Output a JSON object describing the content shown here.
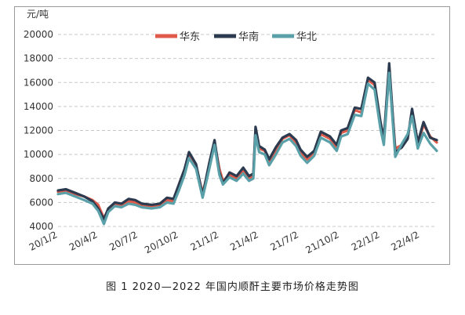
{
  "caption": "图 1  2020—2022 年国内顺酐主要市场价格走势图",
  "chart_data": {
    "type": "line",
    "title": "",
    "xlabel": "",
    "ylabel": "元/吨",
    "ylim": [
      4000,
      20000
    ],
    "yticks": [
      4000,
      6000,
      8000,
      10000,
      12000,
      14000,
      16000,
      18000,
      20000
    ],
    "xticks": [
      "20/1/2",
      "20/4/2",
      "20/7/2",
      "20/10/2",
      "21/1/2",
      "21/4/2",
      "21/7/2",
      "21/10/2",
      "22/1/2",
      "22/4/2"
    ],
    "x_range": [
      "2020-01-02",
      "2022-05-10"
    ],
    "grid": "horizontal dashed",
    "legend_position": "top-center",
    "series": [
      {
        "name": "华东",
        "color": "#e05a4a",
        "points": [
          [
            "2020-01-02",
            6900
          ],
          [
            "2020-01-20",
            7000
          ],
          [
            "2020-02-10",
            6700
          ],
          [
            "2020-03-01",
            6500
          ],
          [
            "2020-03-20",
            6200
          ],
          [
            "2020-04-02",
            5800
          ],
          [
            "2020-04-15",
            4700
          ],
          [
            "2020-04-25",
            5400
          ],
          [
            "2020-05-10",
            5900
          ],
          [
            "2020-05-25",
            5800
          ],
          [
            "2020-06-10",
            6100
          ],
          [
            "2020-06-25",
            6000
          ],
          [
            "2020-07-10",
            5800
          ],
          [
            "2020-08-01",
            5700
          ],
          [
            "2020-08-20",
            5800
          ],
          [
            "2020-09-05",
            6200
          ],
          [
            "2020-09-20",
            6100
          ],
          [
            "2020-10-02",
            7200
          ],
          [
            "2020-10-15",
            8500
          ],
          [
            "2020-10-25",
            10000
          ],
          [
            "2020-11-10",
            9000
          ],
          [
            "2020-11-25",
            6800
          ],
          [
            "2020-12-10",
            9000
          ],
          [
            "2020-12-22",
            11000
          ],
          [
            "2021-01-02",
            8800
          ],
          [
            "2021-01-10",
            7800
          ],
          [
            "2021-01-25",
            8300
          ],
          [
            "2021-02-10",
            8000
          ],
          [
            "2021-02-25",
            8600
          ],
          [
            "2021-03-10",
            8000
          ],
          [
            "2021-03-20",
            8200
          ],
          [
            "2021-03-25",
            12100
          ],
          [
            "2021-04-02",
            10500
          ],
          [
            "2021-04-15",
            10300
          ],
          [
            "2021-04-25",
            9400
          ],
          [
            "2021-05-10",
            10300
          ],
          [
            "2021-05-25",
            11300
          ],
          [
            "2021-06-10",
            11600
          ],
          [
            "2021-06-25",
            11000
          ],
          [
            "2021-07-05",
            10200
          ],
          [
            "2021-07-20",
            9600
          ],
          [
            "2021-08-05",
            10200
          ],
          [
            "2021-08-20",
            11700
          ],
          [
            "2021-09-10",
            11300
          ],
          [
            "2021-09-25",
            10500
          ],
          [
            "2021-10-05",
            11800
          ],
          [
            "2021-10-20",
            12000
          ],
          [
            "2021-11-05",
            13700
          ],
          [
            "2021-11-20",
            13500
          ],
          [
            "2021-12-05",
            16200
          ],
          [
            "2021-12-20",
            15800
          ],
          [
            "2022-01-02",
            12500
          ],
          [
            "2022-01-10",
            11000
          ],
          [
            "2022-01-22",
            17000
          ],
          [
            "2022-02-05",
            10500
          ],
          [
            "2022-02-20",
            10800
          ],
          [
            "2022-03-05",
            11500
          ],
          [
            "2022-03-15",
            13500
          ],
          [
            "2022-03-28",
            10800
          ],
          [
            "2022-04-10",
            12500
          ],
          [
            "2022-04-25",
            11500
          ],
          [
            "2022-05-10",
            11000
          ]
        ]
      },
      {
        "name": "华南",
        "color": "#2b3a4e",
        "points": [
          [
            "2020-01-02",
            7000
          ],
          [
            "2020-01-20",
            7100
          ],
          [
            "2020-02-10",
            6800
          ],
          [
            "2020-03-01",
            6500
          ],
          [
            "2020-03-20",
            6100
          ],
          [
            "2020-04-02",
            5500
          ],
          [
            "2020-04-15",
            4600
          ],
          [
            "2020-04-25",
            5500
          ],
          [
            "2020-05-10",
            6000
          ],
          [
            "2020-05-25",
            5900
          ],
          [
            "2020-06-10",
            6300
          ],
          [
            "2020-06-25",
            6200
          ],
          [
            "2020-07-10",
            5900
          ],
          [
            "2020-08-01",
            5800
          ],
          [
            "2020-08-20",
            5900
          ],
          [
            "2020-09-05",
            6400
          ],
          [
            "2020-09-20",
            6300
          ],
          [
            "2020-10-02",
            7500
          ],
          [
            "2020-10-15",
            8800
          ],
          [
            "2020-10-25",
            10200
          ],
          [
            "2020-11-10",
            9200
          ],
          [
            "2020-11-25",
            6600
          ],
          [
            "2020-12-10",
            9300
          ],
          [
            "2020-12-22",
            11200
          ],
          [
            "2021-01-02",
            8500
          ],
          [
            "2021-01-10",
            7600
          ],
          [
            "2021-01-25",
            8500
          ],
          [
            "2021-02-10",
            8200
          ],
          [
            "2021-02-25",
            8900
          ],
          [
            "2021-03-10",
            8200
          ],
          [
            "2021-03-20",
            8400
          ],
          [
            "2021-03-25",
            12300
          ],
          [
            "2021-04-02",
            10700
          ],
          [
            "2021-04-15",
            10400
          ],
          [
            "2021-04-25",
            9600
          ],
          [
            "2021-05-10",
            10600
          ],
          [
            "2021-05-25",
            11400
          ],
          [
            "2021-06-10",
            11700
          ],
          [
            "2021-06-25",
            11200
          ],
          [
            "2021-07-05",
            10400
          ],
          [
            "2021-07-20",
            9800
          ],
          [
            "2021-08-05",
            10300
          ],
          [
            "2021-08-20",
            11900
          ],
          [
            "2021-09-10",
            11500
          ],
          [
            "2021-09-25",
            10800
          ],
          [
            "2021-10-05",
            12000
          ],
          [
            "2021-10-20",
            12200
          ],
          [
            "2021-11-05",
            13900
          ],
          [
            "2021-11-20",
            13800
          ],
          [
            "2021-12-05",
            16400
          ],
          [
            "2021-12-20",
            16000
          ],
          [
            "2022-01-02",
            12800
          ],
          [
            "2022-01-10",
            11300
          ],
          [
            "2022-01-22",
            17600
          ],
          [
            "2022-02-05",
            10200
          ],
          [
            "2022-02-20",
            10600
          ],
          [
            "2022-03-05",
            11300
          ],
          [
            "2022-03-15",
            13800
          ],
          [
            "2022-03-28",
            11000
          ],
          [
            "2022-04-10",
            12700
          ],
          [
            "2022-04-25",
            11400
          ],
          [
            "2022-05-10",
            11200
          ]
        ]
      },
      {
        "name": "华北",
        "color": "#5aa0a8",
        "points": [
          [
            "2020-01-02",
            6700
          ],
          [
            "2020-01-20",
            6800
          ],
          [
            "2020-02-10",
            6500
          ],
          [
            "2020-03-01",
            6200
          ],
          [
            "2020-03-20",
            5900
          ],
          [
            "2020-04-02",
            5300
          ],
          [
            "2020-04-15",
            4200
          ],
          [
            "2020-04-25",
            5200
          ],
          [
            "2020-05-10",
            5700
          ],
          [
            "2020-05-25",
            5600
          ],
          [
            "2020-06-10",
            5900
          ],
          [
            "2020-06-25",
            5800
          ],
          [
            "2020-07-10",
            5600
          ],
          [
            "2020-08-01",
            5500
          ],
          [
            "2020-08-20",
            5600
          ],
          [
            "2020-09-05",
            6000
          ],
          [
            "2020-09-20",
            5900
          ],
          [
            "2020-10-02",
            7000
          ],
          [
            "2020-10-15",
            8300
          ],
          [
            "2020-10-25",
            9700
          ],
          [
            "2020-11-10",
            8800
          ],
          [
            "2020-11-25",
            6400
          ],
          [
            "2020-12-10",
            8800
          ],
          [
            "2020-12-22",
            10800
          ],
          [
            "2021-01-02",
            8300
          ],
          [
            "2021-01-10",
            7500
          ],
          [
            "2021-01-25",
            8100
          ],
          [
            "2021-02-10",
            7800
          ],
          [
            "2021-02-25",
            8400
          ],
          [
            "2021-03-10",
            7800
          ],
          [
            "2021-03-20",
            8000
          ],
          [
            "2021-03-25",
            11600
          ],
          [
            "2021-04-02",
            10200
          ],
          [
            "2021-04-15",
            10000
          ],
          [
            "2021-04-25",
            9100
          ],
          [
            "2021-05-10",
            10000
          ],
          [
            "2021-05-25",
            11000
          ],
          [
            "2021-06-10",
            11300
          ],
          [
            "2021-06-25",
            10700
          ],
          [
            "2021-07-05",
            9900
          ],
          [
            "2021-07-20",
            9300
          ],
          [
            "2021-08-05",
            9900
          ],
          [
            "2021-08-20",
            11400
          ],
          [
            "2021-09-10",
            11000
          ],
          [
            "2021-09-25",
            10300
          ],
          [
            "2021-10-05",
            11500
          ],
          [
            "2021-10-20",
            11700
          ],
          [
            "2021-11-05",
            13300
          ],
          [
            "2021-11-20",
            13200
          ],
          [
            "2021-12-05",
            15900
          ],
          [
            "2021-12-20",
            15400
          ],
          [
            "2022-01-02",
            12200
          ],
          [
            "2022-01-10",
            10800
          ],
          [
            "2022-01-22",
            16800
          ],
          [
            "2022-02-05",
            9800
          ],
          [
            "2022-02-20",
            10900
          ],
          [
            "2022-03-05",
            11700
          ],
          [
            "2022-03-15",
            13200
          ],
          [
            "2022-03-28",
            10500
          ],
          [
            "2022-04-10",
            11800
          ],
          [
            "2022-04-25",
            10900
          ],
          [
            "2022-05-10",
            10300
          ]
        ]
      }
    ]
  }
}
